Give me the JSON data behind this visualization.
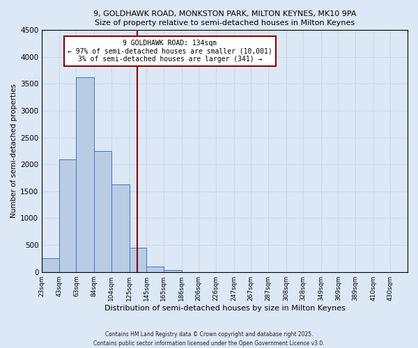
{
  "title_line1": "9, GOLDHAWK ROAD, MONKSTON PARK, MILTON KEYNES, MK10 9PA",
  "title_line2": "Size of property relative to semi-detached houses in Milton Keynes",
  "xlabel": "Distribution of semi-detached houses by size in Milton Keynes",
  "ylabel": "Number of semi-detached properties",
  "bar_left_edges": [
    23,
    43,
    63,
    84,
    104,
    125,
    145,
    165,
    186,
    206,
    226,
    247,
    267,
    287,
    308,
    328,
    349,
    369,
    389,
    410
  ],
  "bar_widths": [
    20,
    20,
    21,
    20,
    21,
    20,
    20,
    21,
    20,
    20,
    21,
    20,
    20,
    21,
    20,
    21,
    20,
    20,
    21,
    20
  ],
  "bar_heights": [
    250,
    2100,
    3620,
    2250,
    1630,
    455,
    100,
    40,
    0,
    0,
    0,
    0,
    0,
    0,
    0,
    0,
    0,
    0,
    0,
    0
  ],
  "bar_color": "#b8cce4",
  "bar_edge_color": "#4472c4",
  "property_value": 134,
  "vline_color": "#8b0000",
  "annotation_title": "9 GOLDHAWK ROAD: 134sqm",
  "annotation_line1": "← 97% of semi-detached houses are smaller (10,001)",
  "annotation_line2": "3% of semi-detached houses are larger (341) →",
  "annotation_box_color": "#ffffff",
  "annotation_box_edge": "#8b0000",
  "ylim": [
    0,
    4500
  ],
  "yticks": [
    0,
    500,
    1000,
    1500,
    2000,
    2500,
    3000,
    3500,
    4000,
    4500
  ],
  "xtick_labels": [
    "23sqm",
    "43sqm",
    "63sqm",
    "84sqm",
    "104sqm",
    "125sqm",
    "145sqm",
    "165sqm",
    "186sqm",
    "206sqm",
    "226sqm",
    "247sqm",
    "267sqm",
    "287sqm",
    "308sqm",
    "328sqm",
    "349sqm",
    "369sqm",
    "389sqm",
    "410sqm",
    "430sqm"
  ],
  "xtick_positions": [
    23,
    43,
    63,
    84,
    104,
    125,
    145,
    165,
    186,
    206,
    226,
    247,
    267,
    287,
    308,
    328,
    349,
    369,
    389,
    410,
    430
  ],
  "grid_color": "#c8d8ec",
  "bg_color": "#dce8f5",
  "footnote1": "Contains HM Land Registry data © Crown copyright and database right 2025.",
  "footnote2": "Contains public sector information licensed under the Open Government Licence v3.0."
}
